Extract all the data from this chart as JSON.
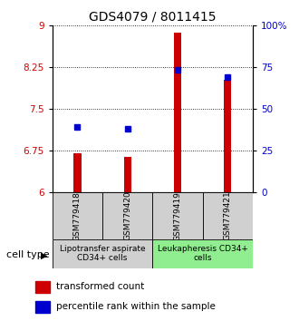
{
  "title": "GDS4079 / 8011415",
  "samples": [
    "GSM779418",
    "GSM779420",
    "GSM779419",
    "GSM779421"
  ],
  "red_values": [
    6.7,
    6.65,
    8.87,
    8.02
  ],
  "blue_values": [
    7.18,
    7.15,
    8.21,
    8.08
  ],
  "y_min": 6.0,
  "y_max": 9.0,
  "yticks_left": [
    6,
    6.75,
    7.5,
    8.25,
    9
  ],
  "yticks_right": [
    0,
    25,
    50,
    75,
    100
  ],
  "bar_color": "#cc0000",
  "dot_color": "#0000cc",
  "group1_label": "Lipotransfer aspirate\nCD34+ cells",
  "group2_label": "Leukapheresis CD34+\ncells",
  "group1_color": "#d0d0d0",
  "group2_color": "#90ee90",
  "cell_type_label": "cell type",
  "legend_red": "transformed count",
  "legend_blue": "percentile rank within the sample",
  "bar_width": 0.15,
  "title_fontsize": 10,
  "tick_fontsize": 7.5,
  "sample_fontsize": 6.5,
  "group_fontsize": 6.5,
  "legend_fontsize": 7.5
}
